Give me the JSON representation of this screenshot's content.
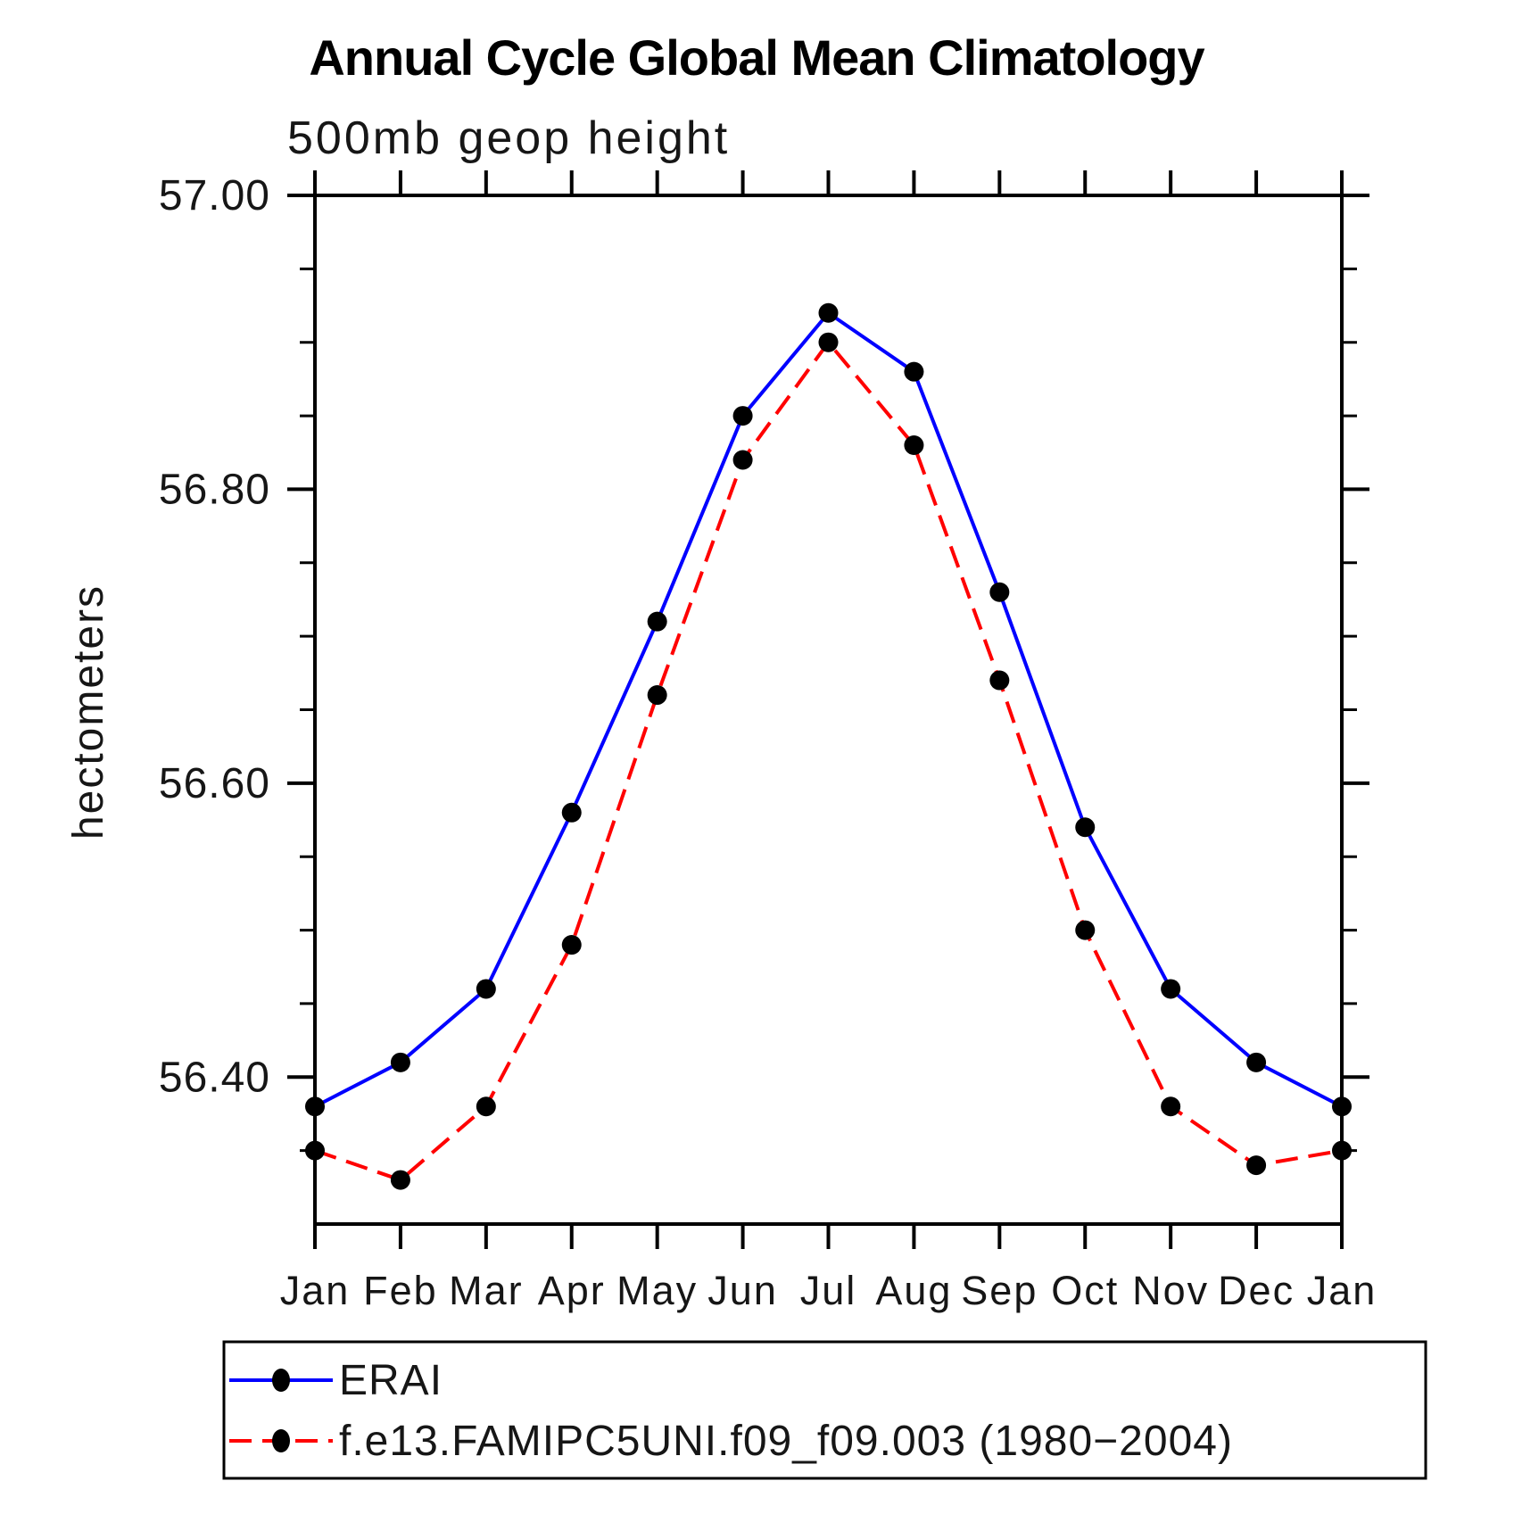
{
  "chart_data": {
    "type": "line",
    "title": "Annual Cycle Global Mean Climatology",
    "subtitle": "500mb geop height",
    "xlabel": "",
    "ylabel": "hectometers",
    "categories": [
      "Jan",
      "Feb",
      "Mar",
      "Apr",
      "May",
      "Jun",
      "Jul",
      "Aug",
      "Sep",
      "Oct",
      "Nov",
      "Dec",
      "Jan"
    ],
    "ylim": [
      56.3,
      57.0
    ],
    "yticks_major": [
      56.4,
      56.6,
      56.8,
      57.0
    ],
    "ytick_labels": [
      "56.40",
      "56.60",
      "56.80",
      "57.00"
    ],
    "ytick_minor_step": 0.05,
    "grid": false,
    "legend_position": "bottom",
    "axis_color": "#000000",
    "marker_color": "#000000",
    "series": [
      {
        "name": "ERAI",
        "color": "#0000ff",
        "style": "solid",
        "marker": "circle",
        "values": [
          56.38,
          56.41,
          56.46,
          56.58,
          56.71,
          56.85,
          56.92,
          56.88,
          56.73,
          56.57,
          56.46,
          56.41,
          56.38
        ]
      },
      {
        "name": "f.e13.FAMIPC5UNI.f09_f09.003 (1980−2004)",
        "color": "#ff0000",
        "style": "dashed",
        "marker": "circle",
        "values": [
          56.35,
          56.33,
          56.38,
          56.49,
          56.66,
          56.82,
          56.9,
          56.83,
          56.67,
          56.5,
          56.38,
          56.34,
          56.35
        ]
      }
    ]
  }
}
